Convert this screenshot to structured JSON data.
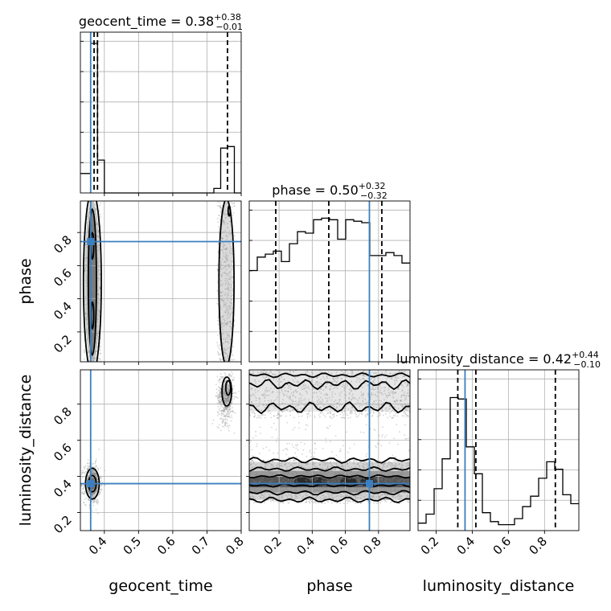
{
  "chart_data": {
    "type": "corner",
    "parameters": [
      "geocent_time",
      "phase",
      "luminosity_distance"
    ],
    "truths": {
      "geocent_time": 0.36,
      "phase": 0.745,
      "luminosity_distance": 0.36
    },
    "ranges": {
      "geocent_time": [
        0.33,
        0.8
      ],
      "phase": [
        0.02,
        0.99
      ],
      "luminosity_distance": [
        0.1,
        0.99
      ]
    },
    "ticks": {
      "geocent_time": [
        0.4,
        0.5,
        0.6,
        0.7,
        0.8
      ],
      "phase": [
        0.2,
        0.4,
        0.6,
        0.8
      ],
      "luminosity_distance": [
        0.2,
        0.4,
        0.6,
        0.8
      ]
    },
    "tick_labels": {
      "geocent_time": [
        "0.4",
        "0.5",
        "0.6",
        "0.7",
        "0.8"
      ],
      "phase": [
        "0.2",
        "0.4",
        "0.6",
        "0.8"
      ],
      "luminosity_distance": [
        "0.2",
        "0.4",
        "0.6",
        "0.8"
      ]
    },
    "summaries": {
      "geocent_time": {
        "name": "geocent_time",
        "median": "0.38",
        "plus": "+0.38",
        "minus": "−0.01"
      },
      "phase": {
        "name": "phase",
        "median": "0.50",
        "plus": "+0.32",
        "minus": "−0.32"
      },
      "luminosity_distance": {
        "name": "luminosity_distance",
        "median": "0.42",
        "plus": "+0.44",
        "minus": "−0.10"
      }
    },
    "quantiles": {
      "geocent_time": [
        0.37,
        0.38,
        0.76
      ],
      "phase": [
        0.18,
        0.5,
        0.82
      ],
      "luminosity_distance": [
        0.32,
        0.42,
        0.86
      ]
    },
    "histograms": {
      "geocent_time": {
        "edges": [
          0.33,
          0.36,
          0.38,
          0.4,
          0.72,
          0.74,
          0.76,
          0.78,
          0.8
        ],
        "counts": [
          0.13,
          1.0,
          0.22,
          0.0,
          0.03,
          0.3,
          0.31,
          0.0
        ]
      },
      "phase": {
        "edges": [
          0.02,
          0.0685,
          0.117,
          0.1655,
          0.214,
          0.2625,
          0.311,
          0.3595,
          0.408,
          0.4565,
          0.505,
          0.5535,
          0.602,
          0.6505,
          0.699,
          0.7475,
          0.796,
          0.8445,
          0.893,
          0.9415,
          0.99
        ],
        "counts": [
          0.61,
          0.7,
          0.72,
          0.74,
          0.67,
          0.79,
          0.87,
          0.86,
          0.95,
          0.96,
          0.95,
          0.82,
          0.95,
          0.94,
          0.93,
          0.71,
          0.71,
          0.73,
          0.71,
          0.66
        ]
      },
      "luminosity_distance": {
        "edges": [
          0.1,
          0.1445,
          0.189,
          0.2335,
          0.278,
          0.3225,
          0.367,
          0.4115,
          0.456,
          0.5005,
          0.545,
          0.5895,
          0.634,
          0.6785,
          0.723,
          0.7675,
          0.812,
          0.8565,
          0.901,
          0.9455,
          0.99
        ],
        "counts": [
          0.05,
          0.11,
          0.28,
          0.48,
          0.89,
          0.88,
          0.56,
          0.38,
          0.12,
          0.06,
          0.04,
          0.04,
          0.08,
          0.16,
          0.23,
          0.35,
          0.46,
          0.41,
          0.24,
          0.18
        ]
      }
    }
  }
}
